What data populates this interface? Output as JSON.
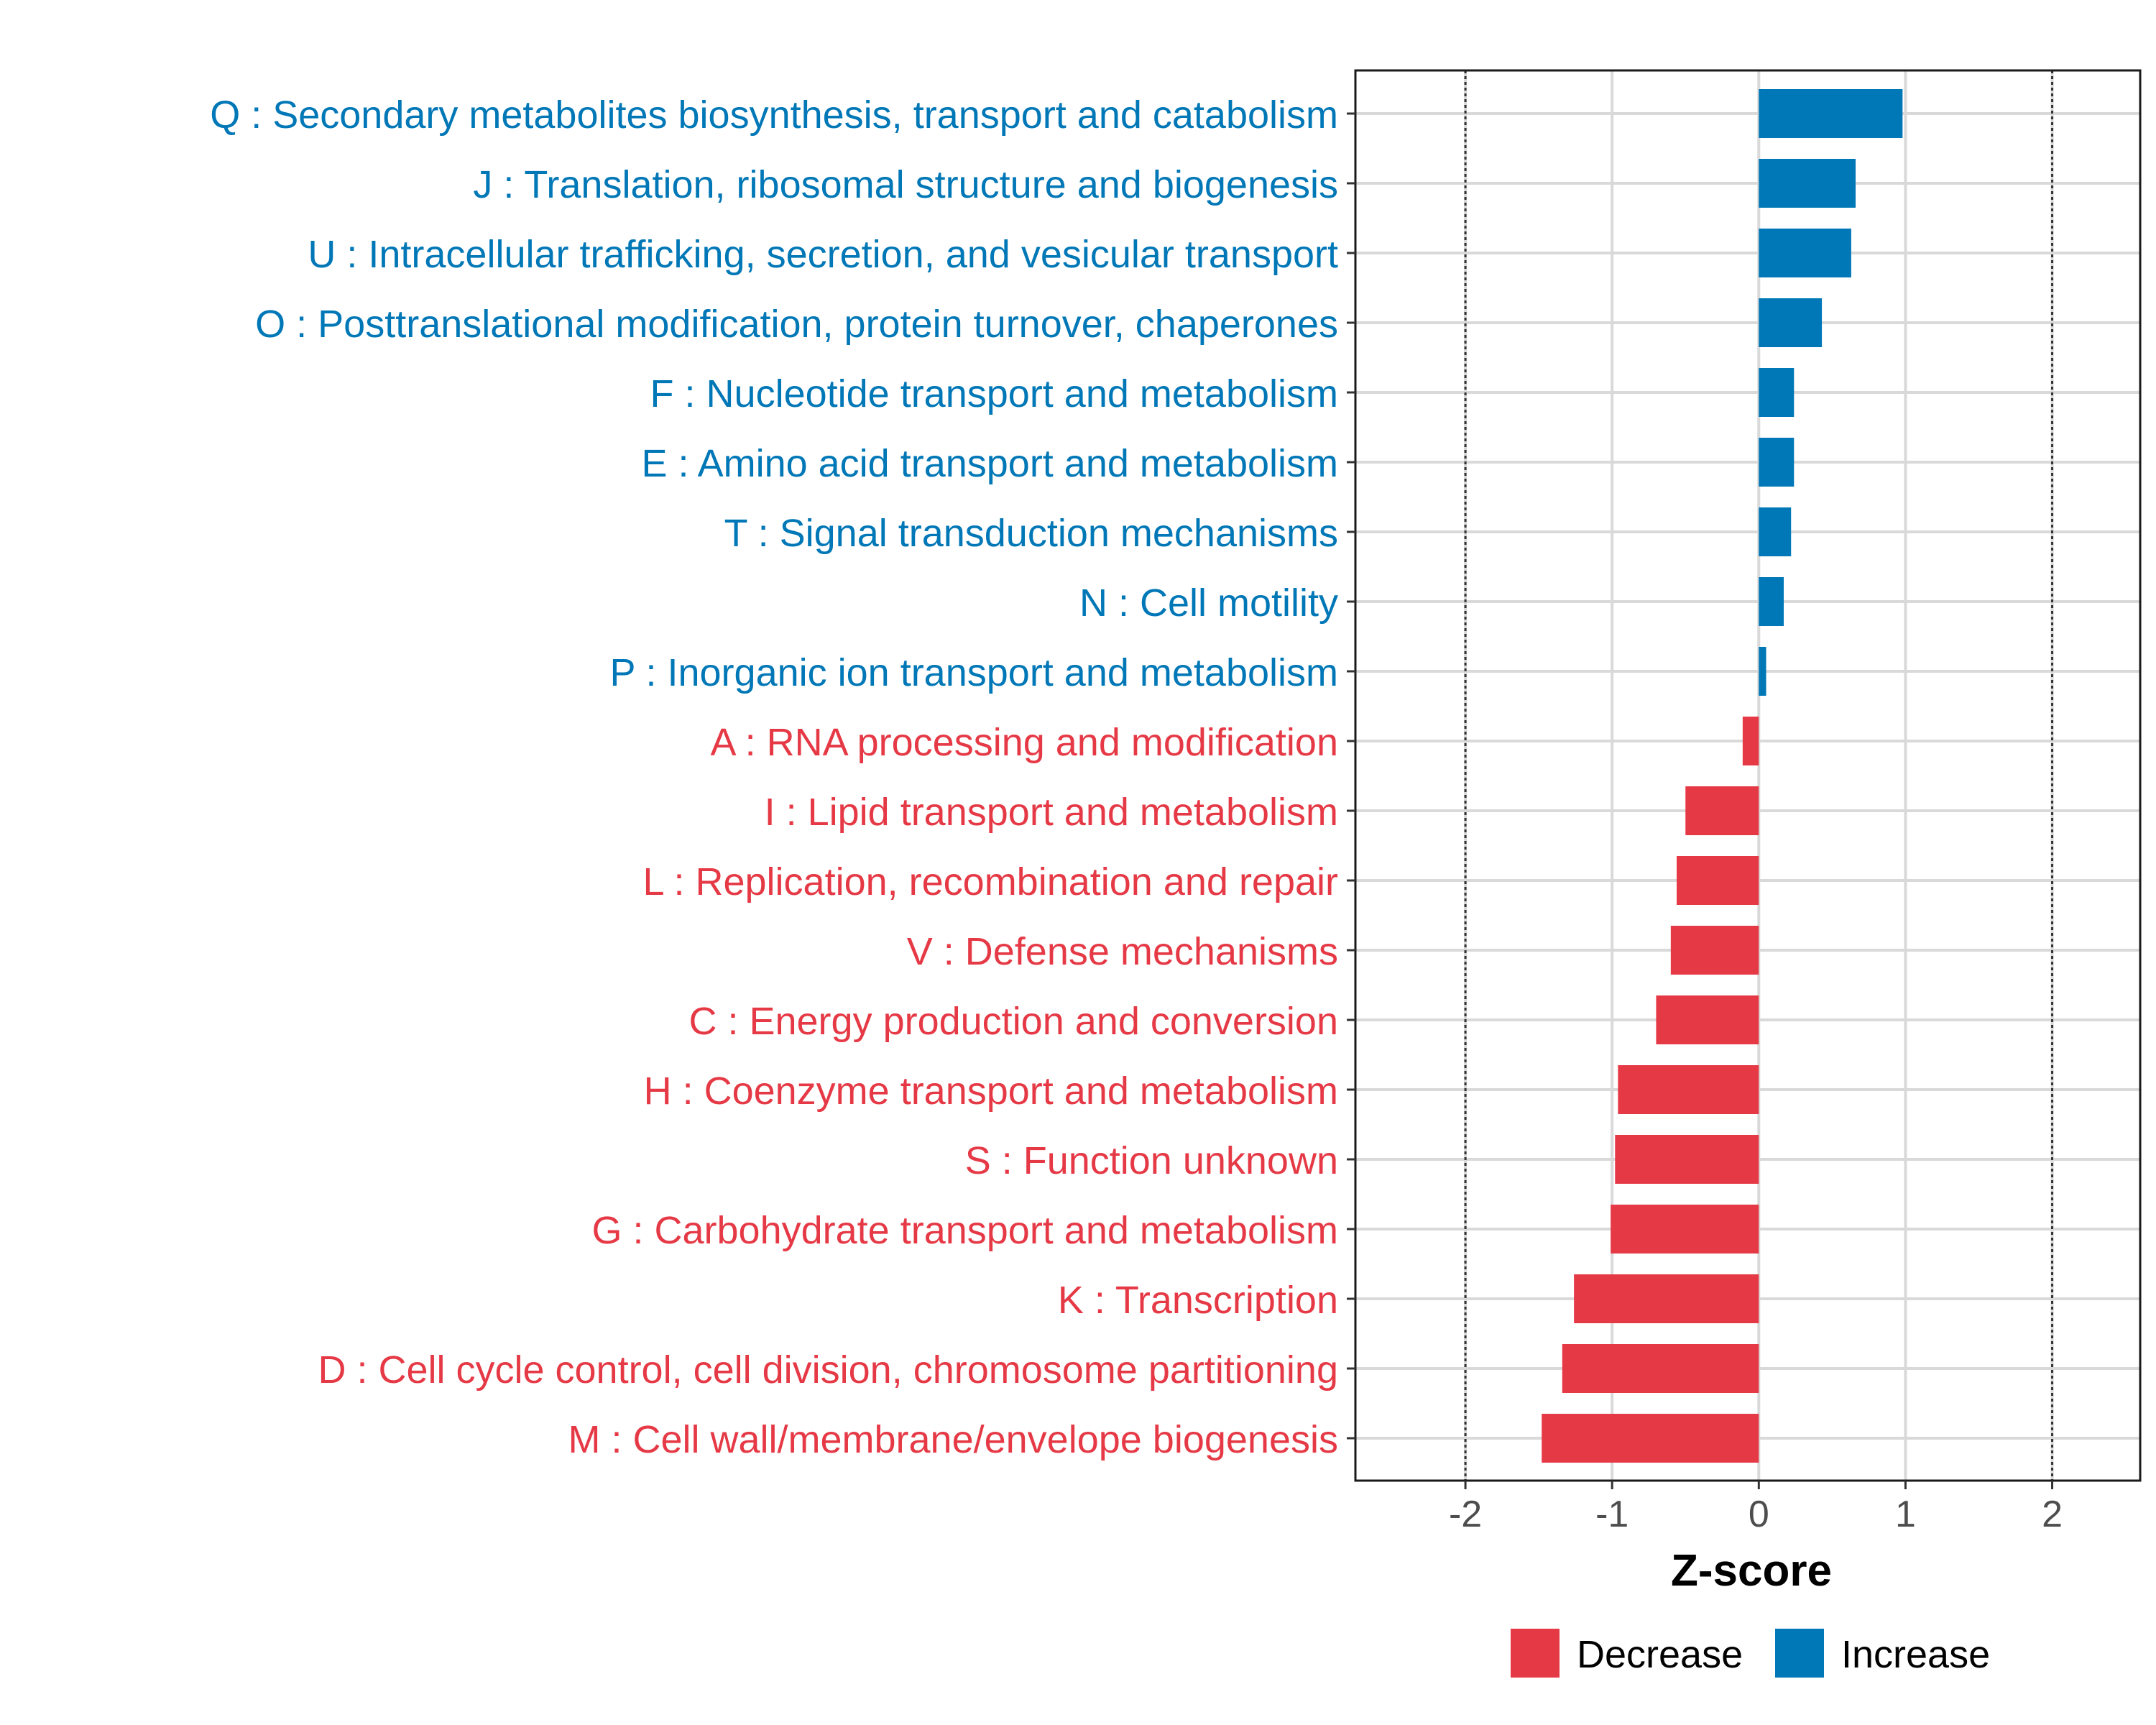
{
  "chart_data": {
    "type": "bar",
    "orientation": "horizontal",
    "xlabel": "Z-score",
    "ylabel": "",
    "xlim": [
      -2.75,
      2.6
    ],
    "xticks": [
      -2,
      -1,
      0,
      1,
      2
    ],
    "xtick_labels": [
      "-2",
      "-1",
      "0",
      "1",
      "2"
    ],
    "reference_lines": [
      -2,
      2
    ],
    "grid": true,
    "legend_position": "bottom",
    "categories": [
      "Q : Secondary metabolites biosynthesis, transport and catabolism",
      "J : Translation, ribosomal structure and biogenesis",
      "U : Intracellular trafficking, secretion, and vesicular transport",
      "O : Posttranslational modification, protein turnover, chaperones",
      "F : Nucleotide transport and metabolism",
      "E : Amino acid transport and metabolism",
      "T : Signal transduction mechanisms",
      "N : Cell motility",
      "P : Inorganic ion transport and metabolism",
      "A : RNA processing and modification",
      "I : Lipid transport and metabolism",
      "L : Replication, recombination and repair",
      "V : Defense mechanisms",
      "C : Energy production and conversion",
      "H : Coenzyme transport and metabolism",
      "S : Function unknown",
      "G : Carbohydrate transport and metabolism",
      "K : Transcription",
      "D : Cell cycle control, cell division, chromosome partitioning",
      "M : Cell wall/membrane/envelope biogenesis"
    ],
    "values": [
      0.98,
      0.66,
      0.63,
      0.43,
      0.24,
      0.24,
      0.22,
      0.17,
      0.05,
      -0.11,
      -0.5,
      -0.56,
      -0.6,
      -0.7,
      -0.96,
      -0.98,
      -1.01,
      -1.26,
      -1.34,
      -1.48
    ],
    "groups": [
      "Increase",
      "Increase",
      "Increase",
      "Increase",
      "Increase",
      "Increase",
      "Increase",
      "Increase",
      "Increase",
      "Decrease",
      "Decrease",
      "Decrease",
      "Decrease",
      "Decrease",
      "Decrease",
      "Decrease",
      "Decrease",
      "Decrease",
      "Decrease",
      "Decrease"
    ],
    "legend": [
      {
        "name": "Decrease",
        "color": "#E63946"
      },
      {
        "name": "Increase",
        "color": "#0077B6"
      }
    ]
  }
}
